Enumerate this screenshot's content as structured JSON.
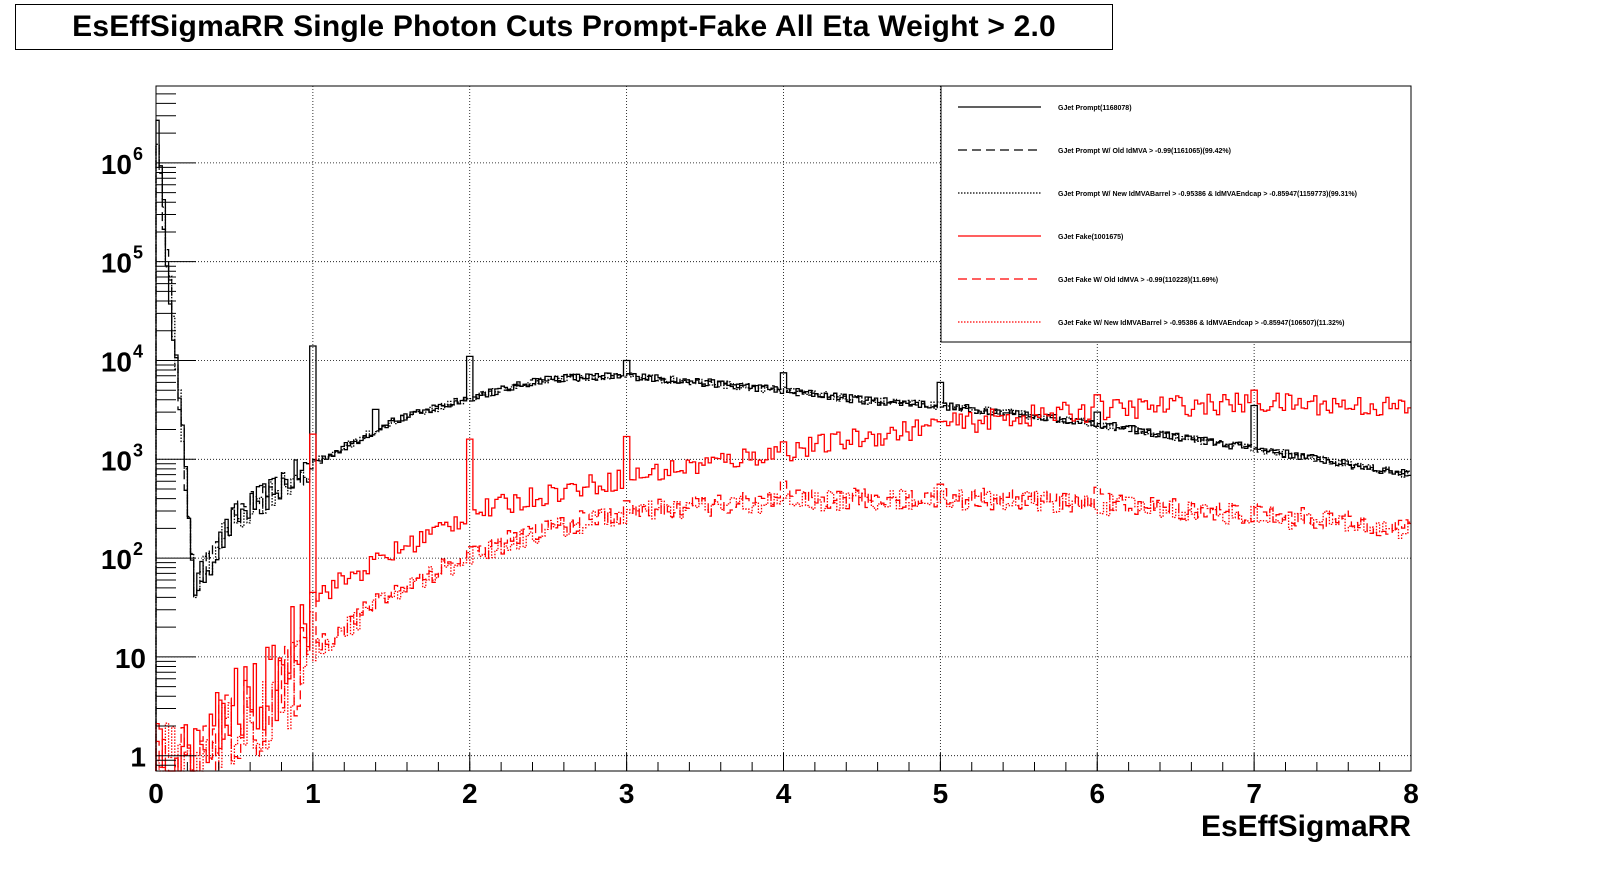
{
  "chart_data": {
    "type": "line",
    "title": "EsEffSigmaRR Single Photon Cuts Prompt-Fake All Eta Weight > 2.0",
    "xlabel": "EsEffSigmaRR",
    "ylabel": "",
    "xlim": [
      0,
      8
    ],
    "ylim": [
      0.7,
      6000000
    ],
    "yscale": "log",
    "grid": true,
    "legend_position": "top-right",
    "x_ticks": [
      "0",
      "1",
      "2",
      "3",
      "4",
      "5",
      "6",
      "7",
      "8"
    ],
    "y_ticks": [
      {
        "value": 1,
        "label": "1"
      },
      {
        "value": 10,
        "label": "10"
      },
      {
        "value": 100,
        "label": "10",
        "exp": "2"
      },
      {
        "value": 1000,
        "label": "10",
        "exp": "3"
      },
      {
        "value": 10000,
        "label": "10",
        "exp": "4"
      },
      {
        "value": 100000,
        "label": "10",
        "exp": "5"
      },
      {
        "value": 1000000,
        "label": "10",
        "exp": "6"
      }
    ],
    "x": [
      0,
      0.25,
      0.5,
      0.75,
      1,
      1.5,
      2,
      2.5,
      3,
      3.5,
      4,
      4.5,
      5,
      5.5,
      6,
      6.5,
      7,
      7.5,
      8
    ],
    "series": [
      {
        "name": "GJet Prompt(1168078)",
        "color": "#000000",
        "style": "solid",
        "values": [
          2700000,
          50,
          250,
          480,
          900,
          2400,
          4200,
          6600,
          7000,
          6000,
          5000,
          4000,
          3500,
          2900,
          2300,
          1700,
          1300,
          950,
          700
        ],
        "spikes": [
          [
            0,
            2700000
          ],
          [
            1,
            14000
          ],
          [
            1.4,
            3200
          ],
          [
            2,
            11000
          ],
          [
            3,
            10000
          ],
          [
            4,
            7500
          ],
          [
            5,
            6000
          ],
          [
            6,
            3000
          ],
          [
            7,
            3500
          ]
        ]
      },
      {
        "name": "GJet Prompt W/ Old IdMVA > -0.99(1161065)(99.42%)",
        "color": "#000000",
        "style": "dashed",
        "values": [
          2690000,
          50,
          248,
          478,
          895,
          2390,
          4180,
          6560,
          6960,
          5970,
          4970,
          3980,
          3480,
          2880,
          2290,
          1690,
          1290,
          945,
          696
        ],
        "spikes": []
      },
      {
        "name": "GJet Prompt W/ New IdMVABarrel > -0.95386 & IdMVAEndcap > -0.85947(1159773)(99.31%)",
        "color": "#000000",
        "style": "dotted",
        "values": [
          2680000,
          50,
          247,
          477,
          894,
          2385,
          4170,
          6550,
          6950,
          5960,
          4960,
          3970,
          3475,
          2875,
          2285,
          1688,
          1288,
          943,
          695
        ],
        "spikes": []
      },
      {
        "name": "GJet Fake(1001675)",
        "color": "#ff0000",
        "style": "solid",
        "values": [
          0.9,
          0.9,
          3,
          5,
          40,
          110,
          280,
          450,
          650,
          900,
          1200,
          1650,
          2200,
          2700,
          3100,
          3500,
          3700,
          3600,
          3300
        ],
        "spikes": [
          [
            1,
            1800
          ],
          [
            2,
            1600
          ],
          [
            3,
            1700
          ],
          [
            4,
            1500
          ],
          [
            5,
            2400
          ],
          [
            6,
            4500
          ],
          [
            7,
            5000
          ]
        ]
      },
      {
        "name": "GJet Fake W/ Old IdMVA > -0.99(110228)(11.69%)",
        "color": "#ff0000",
        "style": "dashed",
        "values": [
          0.8,
          0.8,
          2,
          3,
          12,
          45,
          110,
          200,
          290,
          340,
          380,
          400,
          410,
          390,
          360,
          320,
          280,
          240,
          200
        ],
        "spikes": [
          [
            1,
            45
          ],
          [
            2,
            130
          ],
          [
            3,
            380
          ],
          [
            4,
            600
          ],
          [
            5,
            560
          ],
          [
            6,
            520
          ]
        ]
      },
      {
        "name": "GJet Fake W/ New IdMVABarrel > -0.95386 & IdMVAEndcap > -0.85947(106507)(11.32%)",
        "color": "#ff0000",
        "style": "dotted",
        "values": [
          0.8,
          0.8,
          2,
          3,
          11,
          42,
          105,
          190,
          280,
          330,
          370,
          390,
          400,
          380,
          350,
          310,
          270,
          230,
          190
        ],
        "spikes": []
      }
    ]
  }
}
